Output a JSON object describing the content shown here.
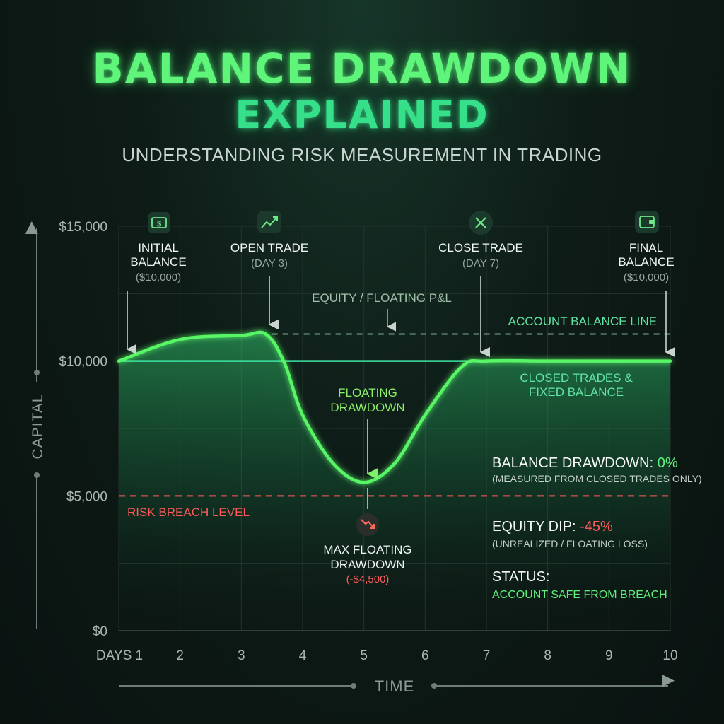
{
  "title_line1": "BALANCE DRAWDOWN",
  "title_line2": "EXPLAINED",
  "subtitle": "UNDERSTANDING RISK MEASUREMENT IN TRADING",
  "colors": {
    "equity": "#58f566",
    "balance": "#3ee3a4",
    "risk": "#ff5b5b",
    "accent": "#5ff07c"
  },
  "chart_data": {
    "type": "line",
    "x": [
      1,
      2,
      3,
      4,
      5,
      6,
      7,
      8,
      9,
      10
    ],
    "xlim": [
      1,
      10
    ],
    "ylim": [
      0,
      15000
    ],
    "x_tick_labels": [
      "DAYS 1",
      "2",
      "3",
      "4",
      "5",
      "6",
      "7",
      "8",
      "9",
      "10"
    ],
    "y_tick_labels": [
      "$0",
      "$5,000",
      "$10,000",
      "$15,000"
    ],
    "y_ticks": [
      0,
      5000,
      10000,
      15000
    ],
    "xlabel": "TIME",
    "ylabel": "CAPITAL",
    "grid": true,
    "series": [
      {
        "name": "EQUITY / FLOATING P&L",
        "points": [
          [
            1,
            10000
          ],
          [
            2,
            10800
          ],
          [
            3,
            10950
          ],
          [
            3.4,
            11000
          ],
          [
            3.7,
            9950
          ],
          [
            4,
            8000
          ],
          [
            4.5,
            6200
          ],
          [
            5,
            5500
          ],
          [
            5.5,
            6200
          ],
          [
            6,
            8000
          ],
          [
            6.6,
            9800
          ],
          [
            7,
            10000
          ],
          [
            8,
            10000
          ],
          [
            9,
            10000
          ],
          [
            10,
            10000
          ]
        ]
      },
      {
        "name": "ACCOUNT BALANCE LINE",
        "points": [
          [
            1,
            10000
          ],
          [
            10,
            10000
          ]
        ]
      }
    ],
    "reference_lines": [
      {
        "label": "RISK BREACH LEVEL",
        "y": 5000,
        "style": "dashed"
      },
      {
        "y": 11000,
        "x_start": 3.5,
        "x_end": 10,
        "style": "dashed"
      }
    ],
    "annotations": [
      {
        "icon": "dollar-bill-icon",
        "line1": "INITIAL",
        "line2": "BALANCE",
        "detail": "($10,000)",
        "x": 1.7,
        "arrow_x": 1.1,
        "arrow_y": 10000
      },
      {
        "icon": "trend-up-icon",
        "line1": "OPEN TRADE",
        "line2": "",
        "detail": "(DAY 3)",
        "x": 3.4,
        "arrow_x": 3.4,
        "arrow_y": 11000
      },
      {
        "icon": "close-x-icon",
        "line1": "CLOSE TRADE",
        "line2": "",
        "detail": "(DAY 7)",
        "x": 6.9,
        "arrow_x": 6.9,
        "arrow_y": 10000
      },
      {
        "icon": "wallet-icon",
        "line1": "FINAL",
        "line2": "BALANCE",
        "detail": "($10,000)",
        "x": 9.7,
        "arrow_x": 9.95,
        "arrow_y": 10000
      }
    ],
    "equity_label": "EQUITY / FLOATING P&L",
    "balance_line_label": "ACCOUNT BALANCE LINE",
    "closed_trades_label_line1": "CLOSED TRADES &",
    "closed_trades_label_line2": "FIXED BALANCE",
    "floating_dd_line1": "FLOATING",
    "floating_dd_line2": "DRAWDOWN",
    "max_dd_line1": "MAX FLOATING",
    "max_dd_line2": "DRAWDOWN",
    "max_dd_value": "(-$4,500)",
    "max_dd_icon": "trend-down-icon"
  },
  "stats": {
    "balance_dd_label": "BALANCE DRAWDOWN: ",
    "balance_dd_value": "0%",
    "balance_dd_note": "(MEASURED FROM CLOSED TRADES ONLY)",
    "equity_dip_label": "EQUITY DIP: ",
    "equity_dip_value": "-45%",
    "equity_dip_note": "(UNREALIZED / FLOATING LOSS)",
    "status_label": "STATUS:",
    "status_value": "ACCOUNT SAFE FROM BREACH"
  }
}
